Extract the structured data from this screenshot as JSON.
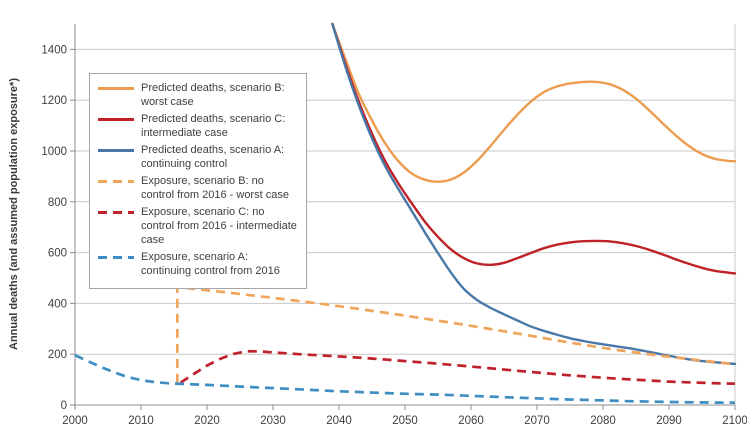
{
  "chart_data": {
    "type": "line",
    "title": "",
    "xlabel": "",
    "ylabel": "Annual deaths (and assumed population exposure*)",
    "xlim": [
      2000,
      2100
    ],
    "ylim": [
      0,
      1500
    ],
    "x_ticks": [
      2000,
      2010,
      2020,
      2030,
      2040,
      2050,
      2060,
      2070,
      2080,
      2090,
      2100
    ],
    "y_ticks": [
      0,
      200,
      400,
      600,
      800,
      1000,
      1200,
      1400
    ],
    "grid": "horizontal gridlines at each y tick",
    "legend_position": "inside upper-left",
    "series": [
      {
        "name": "Predicted deaths, scenario B: worst case",
        "color": "#EC9C4E",
        "line_style": "solid",
        "points": [
          [
            2039,
            1500
          ],
          [
            2041,
            1360
          ],
          [
            2043,
            1225
          ],
          [
            2045,
            1120
          ],
          [
            2047,
            1030
          ],
          [
            2049,
            960
          ],
          [
            2051,
            912
          ],
          [
            2053,
            887
          ],
          [
            2055,
            879
          ],
          [
            2057,
            888
          ],
          [
            2059,
            917
          ],
          [
            2061,
            963
          ],
          [
            2063,
            1021
          ],
          [
            2065,
            1083
          ],
          [
            2067,
            1142
          ],
          [
            2069,
            1193
          ],
          [
            2071,
            1231
          ],
          [
            2073,
            1254
          ],
          [
            2075,
            1266
          ],
          [
            2077,
            1272
          ],
          [
            2079,
            1272
          ],
          [
            2081,
            1263
          ],
          [
            2083,
            1241
          ],
          [
            2085,
            1206
          ],
          [
            2087,
            1160
          ],
          [
            2089,
            1110
          ],
          [
            2091,
            1062
          ],
          [
            2093,
            1020
          ],
          [
            2095,
            988
          ],
          [
            2097,
            969
          ],
          [
            2099,
            961
          ],
          [
            2100,
            960
          ]
        ]
      },
      {
        "name": "Predicted deaths, scenario C: intermediate case",
        "color": "#BE2126",
        "line_style": "solid",
        "points": [
          [
            2039,
            1500
          ],
          [
            2041,
            1340
          ],
          [
            2043,
            1195
          ],
          [
            2045,
            1068
          ],
          [
            2047,
            960
          ],
          [
            2049,
            872
          ],
          [
            2051,
            795
          ],
          [
            2053,
            722
          ],
          [
            2055,
            662
          ],
          [
            2057,
            612
          ],
          [
            2059,
            577
          ],
          [
            2061,
            557
          ],
          [
            2063,
            552
          ],
          [
            2065,
            560
          ],
          [
            2067,
            578
          ],
          [
            2069,
            598
          ],
          [
            2071,
            617
          ],
          [
            2073,
            631
          ],
          [
            2075,
            640
          ],
          [
            2077,
            645
          ],
          [
            2079,
            646
          ],
          [
            2081,
            644
          ],
          [
            2083,
            637
          ],
          [
            2085,
            626
          ],
          [
            2087,
            611
          ],
          [
            2089,
            593
          ],
          [
            2091,
            574
          ],
          [
            2093,
            556
          ],
          [
            2095,
            540
          ],
          [
            2097,
            528
          ],
          [
            2099,
            521
          ],
          [
            2100,
            518
          ]
        ]
      },
      {
        "name": "Predicted deaths, scenario A: continuing control",
        "color": "#4878A8",
        "line_style": "solid",
        "points": [
          [
            2039,
            1500
          ],
          [
            2041,
            1330
          ],
          [
            2043,
            1180
          ],
          [
            2045,
            1050
          ],
          [
            2047,
            940
          ],
          [
            2049,
            850
          ],
          [
            2051,
            765
          ],
          [
            2053,
            680
          ],
          [
            2055,
            598
          ],
          [
            2057,
            520
          ],
          [
            2059,
            455
          ],
          [
            2061,
            412
          ],
          [
            2063,
            382
          ],
          [
            2065,
            357
          ],
          [
            2067,
            333
          ],
          [
            2069,
            310
          ],
          [
            2071,
            292
          ],
          [
            2073,
            277
          ],
          [
            2075,
            263
          ],
          [
            2077,
            252
          ],
          [
            2079,
            243
          ],
          [
            2081,
            235
          ],
          [
            2083,
            227
          ],
          [
            2085,
            219
          ],
          [
            2087,
            209
          ],
          [
            2089,
            199
          ],
          [
            2091,
            189
          ],
          [
            2093,
            180
          ],
          [
            2095,
            173
          ],
          [
            2097,
            168
          ],
          [
            2099,
            164
          ],
          [
            2100,
            162
          ]
        ]
      },
      {
        "name": "Exposure, scenario B: no control from 2016 - worst case",
        "color": "#F0A55C",
        "line_style": "dashed",
        "points": [
          [
            2015.5,
            87
          ],
          [
            2015.5,
            465
          ],
          [
            2018,
            457
          ],
          [
            2022,
            446
          ],
          [
            2026,
            434
          ],
          [
            2030,
            422
          ],
          [
            2034,
            409
          ],
          [
            2038,
            396
          ],
          [
            2042,
            382
          ],
          [
            2046,
            367
          ],
          [
            2050,
            352
          ],
          [
            2054,
            336
          ],
          [
            2058,
            320
          ],
          [
            2062,
            303
          ],
          [
            2066,
            286
          ],
          [
            2070,
            268
          ],
          [
            2074,
            250
          ],
          [
            2078,
            233
          ],
          [
            2082,
            217
          ],
          [
            2086,
            203
          ],
          [
            2090,
            190
          ],
          [
            2094,
            178
          ],
          [
            2098,
            166
          ],
          [
            2100,
            160
          ]
        ]
      },
      {
        "name": "Exposure, scenario C: no control from 2016 - intermediate case",
        "color": "#C0222B",
        "line_style": "dashed",
        "points": [
          [
            2016,
            88
          ],
          [
            2018,
            122
          ],
          [
            2020,
            155
          ],
          [
            2022,
            182
          ],
          [
            2024,
            201
          ],
          [
            2026,
            212
          ],
          [
            2028,
            211
          ],
          [
            2030,
            207
          ],
          [
            2034,
            200
          ],
          [
            2038,
            194
          ],
          [
            2042,
            188
          ],
          [
            2046,
            181
          ],
          [
            2050,
            173
          ],
          [
            2054,
            165
          ],
          [
            2058,
            156
          ],
          [
            2062,
            147
          ],
          [
            2066,
            137
          ],
          [
            2070,
            128
          ],
          [
            2074,
            119
          ],
          [
            2078,
            111
          ],
          [
            2082,
            104
          ],
          [
            2086,
            98
          ],
          [
            2090,
            92
          ],
          [
            2094,
            88
          ],
          [
            2098,
            85
          ],
          [
            2100,
            84
          ]
        ]
      },
      {
        "name": "Exposure, scenario A: continuing control from 2016",
        "color": "#3E8EC4",
        "line_style": "dashed",
        "points": [
          [
            2000,
            196
          ],
          [
            2002,
            172
          ],
          [
            2004,
            149
          ],
          [
            2006,
            128
          ],
          [
            2008,
            110
          ],
          [
            2010,
            98
          ],
          [
            2012,
            90
          ],
          [
            2014,
            86
          ],
          [
            2016,
            83
          ],
          [
            2018,
            81
          ],
          [
            2020,
            79
          ],
          [
            2024,
            74
          ],
          [
            2028,
            69
          ],
          [
            2032,
            64
          ],
          [
            2036,
            59
          ],
          [
            2040,
            54
          ],
          [
            2044,
            50
          ],
          [
            2048,
            46
          ],
          [
            2052,
            43
          ],
          [
            2056,
            40
          ],
          [
            2060,
            36
          ],
          [
            2064,
            32
          ],
          [
            2068,
            28
          ],
          [
            2072,
            24
          ],
          [
            2076,
            21
          ],
          [
            2080,
            18
          ],
          [
            2084,
            15
          ],
          [
            2088,
            13
          ],
          [
            2092,
            11
          ],
          [
            2096,
            10
          ],
          [
            2100,
            9
          ]
        ]
      }
    ],
    "style_colors": {
      "gridline": "#c9c9c9",
      "axis": "#8c8c8c",
      "tick_label": "#404040",
      "plot_border_right": "#c9c9c9"
    }
  }
}
